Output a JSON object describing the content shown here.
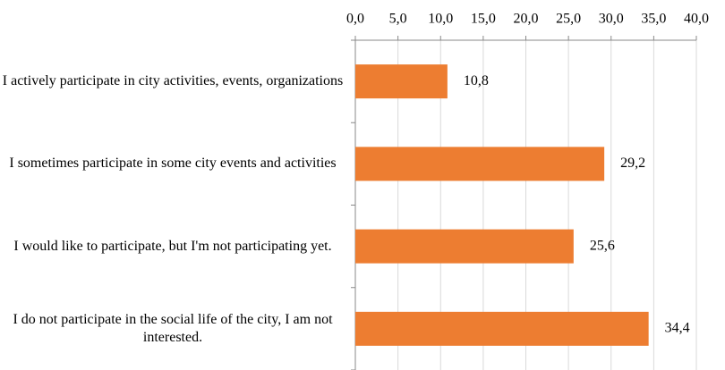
{
  "chart_data": {
    "type": "barh",
    "categories": [
      "I actively participate in city activities, events, organizations",
      "I sometimes participate in some city events and activities",
      "I would like to participate, but I'm not participating yet.",
      "I do not participate in the social life of the city, I am not interested."
    ],
    "values": [
      10.8,
      29.2,
      25.6,
      34.4
    ],
    "value_labels": [
      "10,8",
      "29,2",
      "25,6",
      "34,4"
    ],
    "color": "#ed7d31",
    "xlim": [
      0,
      40
    ],
    "xticks": [
      {
        "value": 0,
        "label": "0,0"
      },
      {
        "value": 5,
        "label": "5,0"
      },
      {
        "value": 10,
        "label": "10,0"
      },
      {
        "value": 15,
        "label": "15,0"
      },
      {
        "value": 20,
        "label": "20,0"
      },
      {
        "value": 25,
        "label": "25,0"
      },
      {
        "value": 30,
        "label": "30,0"
      },
      {
        "value": 35,
        "label": "35,0"
      },
      {
        "value": 40,
        "label": "40,0"
      }
    ],
    "grid": true
  }
}
